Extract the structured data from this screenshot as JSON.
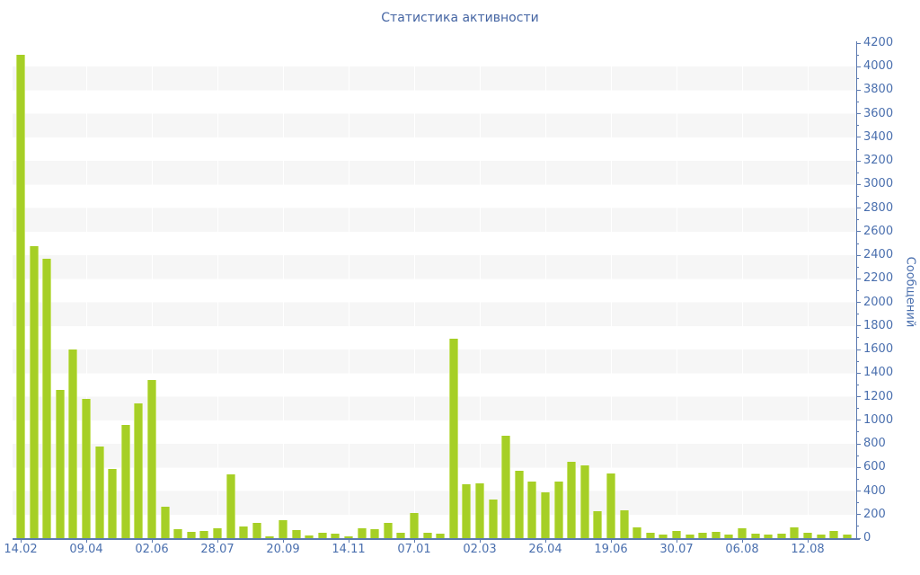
{
  "title": "Статистика активности",
  "colors": {
    "bar": "#a6cf26",
    "bar_edge": "#c9e36e",
    "tick_label": "#4a6fae",
    "title": "#4565a3",
    "axis": "#5c7ab0",
    "band": "#f6f6f6"
  },
  "chart_data": {
    "type": "bar",
    "title": "Статистика активности",
    "xlabel": "",
    "ylabel": "Сообщений",
    "ylim": [
      0,
      4200
    ],
    "y_tick_step": 200,
    "y_minor_tick_step": 100,
    "grid": "alternating horizontal bands, white vertical gridlines at major x ticks",
    "legend_position": "none",
    "x_tick_labels": [
      "14.02",
      "09.04",
      "02.06",
      "28.07",
      "20.09",
      "14.11",
      "07.01",
      "02.03",
      "26.04",
      "19.06",
      "30.07",
      "06.08",
      "12.08"
    ],
    "x_tick_every": 5,
    "values": [
      4100,
      2475,
      2370,
      1255,
      1600,
      1185,
      775,
      590,
      960,
      1140,
      1340,
      270,
      80,
      56,
      64,
      86,
      545,
      99,
      127,
      17,
      155,
      66,
      25,
      48,
      38,
      17,
      82,
      74,
      130,
      48,
      210,
      48,
      41,
      1690,
      460,
      465,
      330,
      870,
      570,
      480,
      390,
      480,
      650,
      620,
      230,
      550,
      240,
      90,
      48,
      33,
      62,
      33,
      45,
      55,
      28,
      85,
      40,
      33,
      38,
      95,
      43,
      28,
      58,
      30
    ]
  }
}
